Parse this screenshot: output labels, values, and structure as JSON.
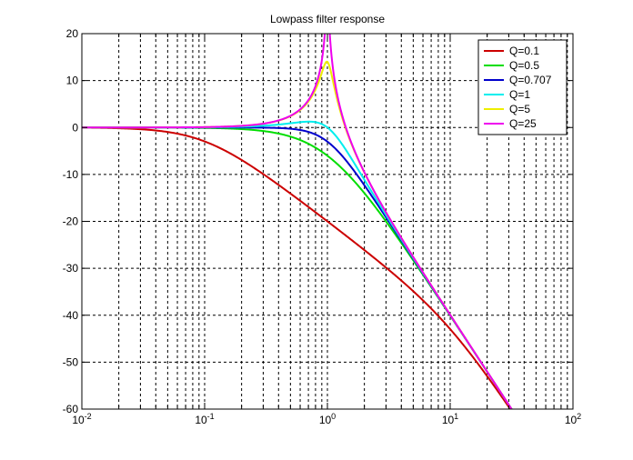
{
  "chart_data": {
    "type": "line",
    "title": "Lowpass filter response",
    "xscale": "log",
    "xlim": [
      0.01,
      100
    ],
    "ylim": [
      -60,
      20
    ],
    "grid": true,
    "legend_position": "top-right",
    "x_ticks": [
      {
        "base": "10",
        "exp": "-2"
      },
      {
        "base": "10",
        "exp": "-1"
      },
      {
        "base": "10",
        "exp": "0"
      },
      {
        "base": "10",
        "exp": "1"
      },
      {
        "base": "10",
        "exp": "2"
      }
    ],
    "y_ticks": [
      "20",
      "10",
      "0",
      "-10",
      "-20",
      "-30",
      "-40",
      "-50",
      "-60"
    ],
    "y_tick_values": [
      20,
      10,
      0,
      -10,
      -20,
      -30,
      -40,
      -50,
      -60
    ],
    "series": [
      {
        "name": "Q=0.1",
        "q": 0.1,
        "color": "#cc0000"
      },
      {
        "name": "Q=0.5",
        "q": 0.5,
        "color": "#00dd00"
      },
      {
        "name": "Q=0.707",
        "q": 0.707,
        "color": "#0000cc"
      },
      {
        "name": "Q=1",
        "q": 1,
        "color": "#00eeee"
      },
      {
        "name": "Q=5",
        "q": 5,
        "color": "#eeee00"
      },
      {
        "name": "Q=25",
        "q": 25,
        "color": "#ee00ee"
      }
    ]
  }
}
